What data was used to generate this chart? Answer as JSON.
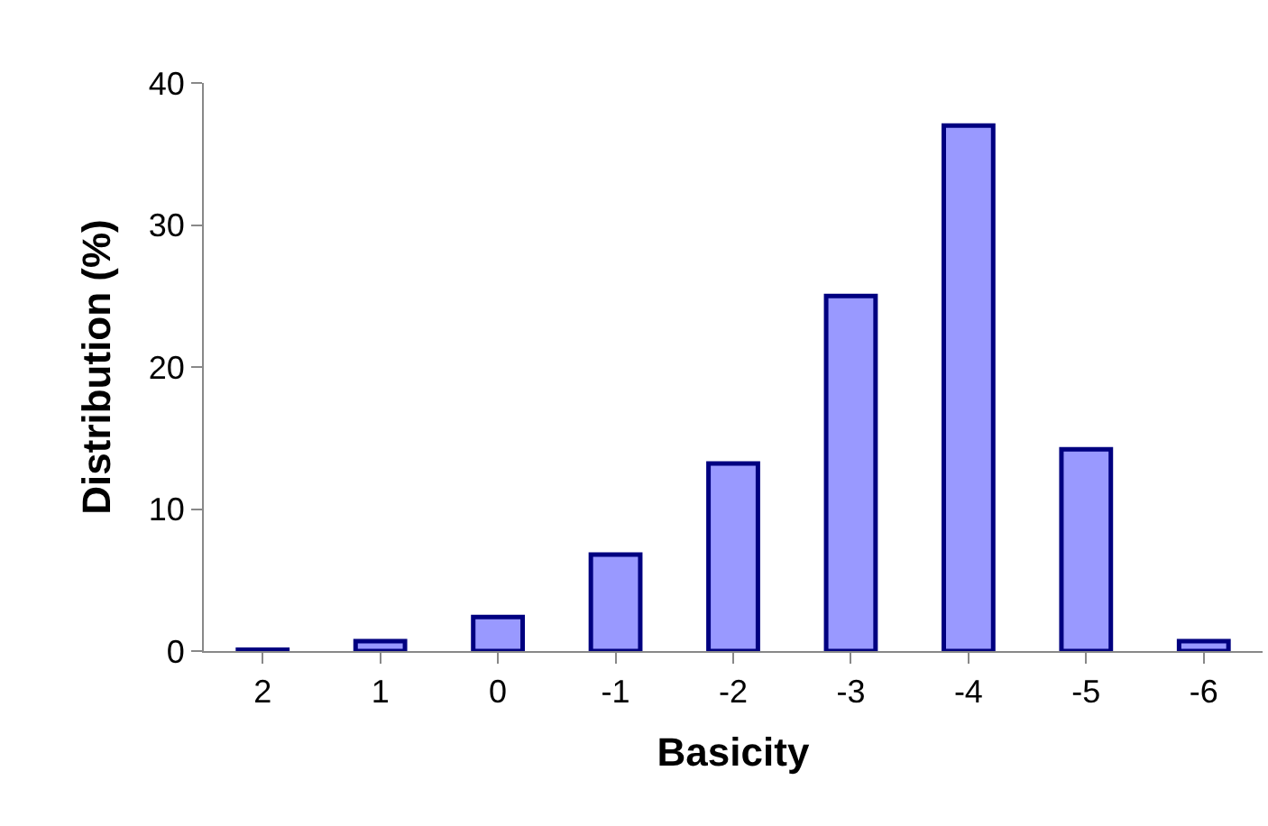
{
  "chart_data": {
    "type": "bar",
    "xlabel": "Basicity",
    "ylabel": "Distribution (%)",
    "categories": [
      "2",
      "1",
      "0",
      "-1",
      "-2",
      "-3",
      "-4",
      "-5",
      "-6"
    ],
    "values": [
      0.1,
      0.7,
      2.4,
      6.8,
      13.2,
      25.0,
      37.0,
      14.2,
      0.7
    ],
    "color": "#9999ff",
    "ylim": [
      0,
      40
    ],
    "yticks": [
      0,
      10,
      20,
      30,
      40
    ],
    "grid": false
  }
}
